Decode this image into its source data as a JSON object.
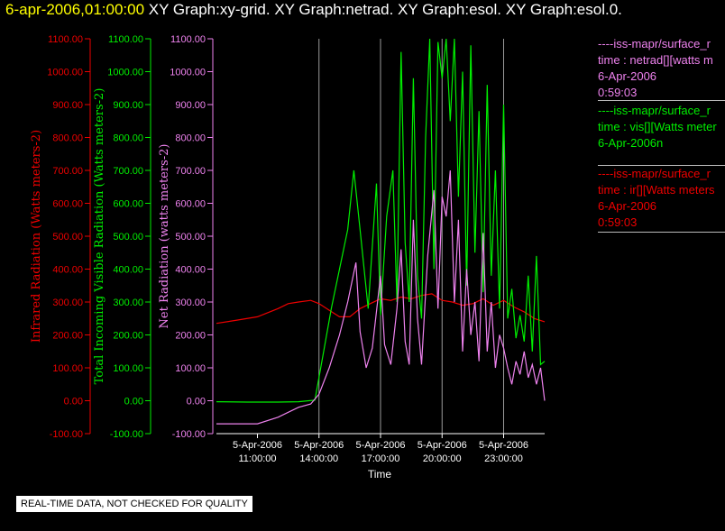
{
  "header": {
    "date": "6-apr-2006,01:00:00",
    "titles": "XY Graph:xy-grid.  XY Graph:netrad.  XY Graph:esol.  XY Graph:esol.0."
  },
  "legend": [
    {
      "line1": "----iss-mapr/surface_r",
      "line2": "time : netrad[][watts m",
      "line3": "6-Apr-2006",
      "line4": "0:59:03",
      "color": "#ee82ee"
    },
    {
      "line1": "----iss-mapr/surface_r",
      "line2": "time : vis[][Watts meter",
      "line3": "6-Apr-2006n",
      "line4": "",
      "color": "#00ee00"
    },
    {
      "line1": "----iss-mapr/surface_r",
      "line2": "time : ir[][Watts meters",
      "line3": "6-Apr-2006",
      "line4": "0:59:03",
      "color": "#ee0000"
    }
  ],
  "quality_note": "REAL-TIME DATA, NOT CHECKED FOR QUALITY",
  "chart_data": {
    "type": "line",
    "xlabel": "Time",
    "xlim": [
      9.0,
      25.0
    ],
    "x_ticks": [
      {
        "x": 11,
        "date": "5-Apr-2006",
        "time": "11:00:00"
      },
      {
        "x": 14,
        "date": "5-Apr-2006",
        "time": "14:00:00"
      },
      {
        "x": 17,
        "date": "5-Apr-2006",
        "time": "17:00:00"
      },
      {
        "x": 20,
        "date": "5-Apr-2006",
        "time": "20:00:00"
      },
      {
        "x": 23,
        "date": "5-Apr-2006",
        "time": "23:00:00"
      }
    ],
    "vertical_grid_x": [
      14,
      17,
      20,
      23
    ],
    "y_axes": [
      {
        "label": "Infrared Radiation (Watts meters-2)",
        "color": "#ee0000",
        "ylim": [
          -100,
          1100
        ],
        "ticks": [
          "1100.00",
          "1000.00",
          "900.00",
          "800.00",
          "700.00",
          "600.00",
          "500.00",
          "400.00",
          "300.00",
          "200.00",
          "100.00",
          "0.00",
          "-100.00"
        ]
      },
      {
        "label": "Total Incoming Visible Radiation (Watts meters-2)",
        "color": "#00ee00",
        "ylim": [
          -100,
          1100
        ],
        "ticks": [
          "1100.00",
          "1000.00",
          "900.00",
          "800.00",
          "700.00",
          "600.00",
          "500.00",
          "400.00",
          "300.00",
          "200.00",
          "100.00",
          "0.00",
          "-100.00"
        ]
      },
      {
        "label": "Net Radiation (watts meters-2)",
        "color": "#ee82ee",
        "ylim": [
          -100,
          1100
        ],
        "ticks": [
          "1100.00",
          "1000.00",
          "900.00",
          "800.00",
          "700.00",
          "600.00",
          "500.00",
          "400.00",
          "300.00",
          "200.00",
          "100.00",
          "0.00",
          "-100.00"
        ]
      }
    ],
    "series": [
      {
        "key": "ir",
        "color": "#ee0000",
        "x": [
          9.0,
          10.0,
          11.0,
          12.0,
          12.5,
          13.0,
          13.6,
          14.0,
          14.5,
          15.0,
          15.5,
          16.0,
          16.5,
          17.0,
          17.5,
          18.0,
          18.5,
          19.0,
          19.5,
          20.0,
          20.5,
          21.0,
          21.5,
          22.0,
          22.5,
          23.0,
          23.5,
          24.0,
          24.5,
          25.0
        ],
        "y": [
          235,
          245,
          255,
          280,
          295,
          300,
          305,
          295,
          275,
          255,
          255,
          280,
          295,
          310,
          305,
          315,
          310,
          320,
          325,
          305,
          300,
          290,
          295,
          310,
          290,
          305,
          285,
          270,
          250,
          240
        ]
      },
      {
        "key": "vis",
        "color": "#00ee00",
        "x": [
          9.0,
          10.5,
          12.0,
          13.0,
          13.8,
          14.2,
          14.6,
          15.0,
          15.4,
          15.7,
          16.0,
          16.4,
          16.8,
          17.0,
          17.3,
          17.6,
          17.8,
          18.0,
          18.2,
          18.4,
          18.6,
          18.8,
          19.0,
          19.2,
          19.4,
          19.6,
          19.8,
          20.0,
          20.2,
          20.4,
          20.6,
          20.8,
          21.0,
          21.2,
          21.4,
          21.6,
          21.8,
          22.0,
          22.2,
          22.4,
          22.6,
          22.8,
          23.0,
          23.2,
          23.4,
          23.6,
          23.8,
          24.0,
          24.2,
          24.4,
          24.6,
          24.8,
          25.0
        ],
        "y": [
          -3,
          -4,
          -4,
          -3,
          2,
          140,
          280,
          400,
          520,
          700,
          520,
          280,
          660,
          260,
          560,
          700,
          300,
          1060,
          480,
          300,
          980,
          380,
          250,
          800,
          1100,
          400,
          1090,
          980,
          1100,
          850,
          1100,
          620,
          1000,
          350,
          1080,
          450,
          880,
          330,
          960,
          380,
          700,
          280,
          900,
          250,
          340,
          190,
          260,
          180,
          380,
          150,
          440,
          110,
          120
        ]
      },
      {
        "key": "netrad",
        "color": "#ee82ee",
        "x": [
          9.0,
          10.0,
          11.0,
          12.0,
          13.0,
          13.6,
          14.0,
          14.5,
          15.0,
          15.4,
          15.8,
          16.0,
          16.3,
          16.6,
          17.0,
          17.2,
          17.5,
          17.8,
          18.0,
          18.2,
          18.4,
          18.6,
          18.8,
          19.0,
          19.3,
          19.6,
          19.8,
          20.0,
          20.2,
          20.4,
          20.6,
          20.8,
          21.0,
          21.2,
          21.4,
          21.6,
          21.8,
          22.0,
          22.2,
          22.4,
          22.6,
          22.8,
          23.0,
          23.2,
          23.4,
          23.6,
          23.8,
          24.0,
          24.2,
          24.4,
          24.6,
          24.8,
          25.0
        ],
        "y": [
          -70,
          -70,
          -70,
          -50,
          -20,
          -10,
          20,
          100,
          200,
          300,
          420,
          210,
          100,
          160,
          380,
          170,
          110,
          280,
          460,
          180,
          110,
          550,
          250,
          110,
          440,
          640,
          280,
          620,
          560,
          700,
          300,
          550,
          150,
          400,
          200,
          300,
          120,
          510,
          150,
          300,
          100,
          200,
          160,
          100,
          50,
          120,
          80,
          150,
          70,
          110,
          50,
          100,
          0
        ]
      }
    ]
  }
}
